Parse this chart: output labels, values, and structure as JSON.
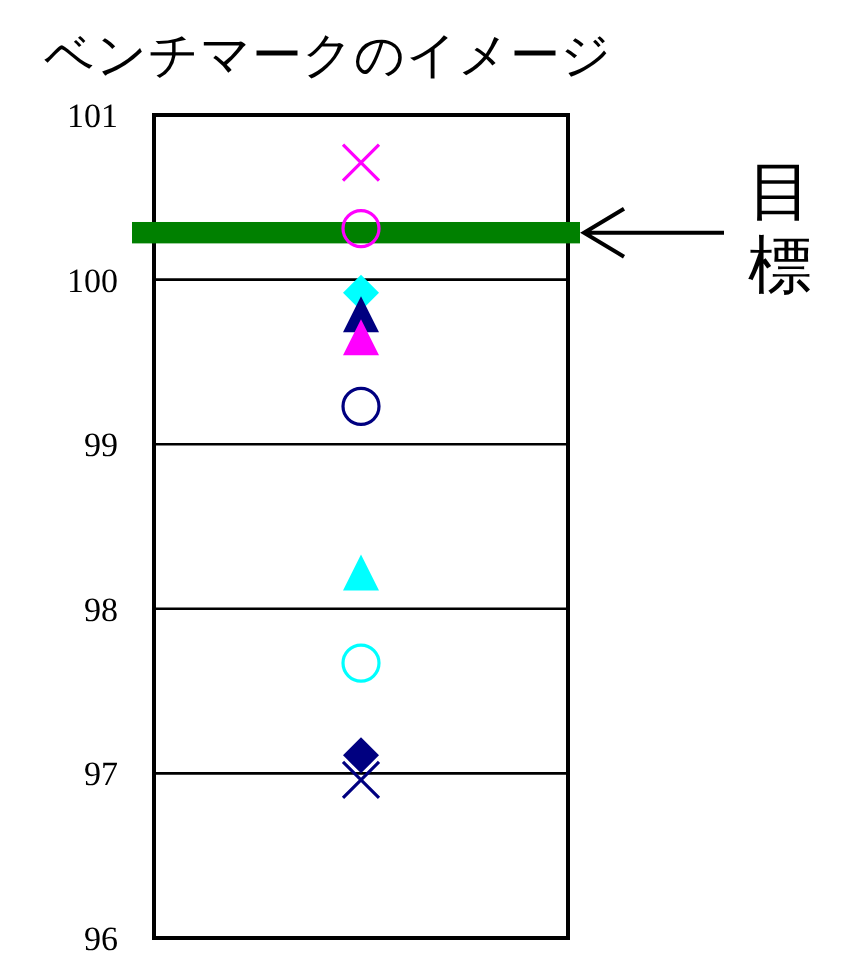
{
  "chart_data": {
    "type": "scatter",
    "title": "ベンチマークのイメージ",
    "categories": [
      null
    ],
    "series": [
      {
        "color": "#ff00ff",
        "marker": "cross",
        "values": [
          100.71
        ]
      },
      {
        "color": "#ff00ff",
        "marker": "circle",
        "values": [
          100.31
        ]
      },
      {
        "color": "#00ffff",
        "marker": "diamond",
        "values": [
          99.92
        ]
      },
      {
        "color": "#000080",
        "marker": "triangle",
        "values": [
          99.79
        ]
      },
      {
        "color": "#ff00ff",
        "marker": "triangle",
        "values": [
          99.65
        ]
      },
      {
        "color": "#000080",
        "marker": "circle",
        "values": [
          99.23
        ]
      },
      {
        "color": "#00ffff",
        "marker": "triangle",
        "values": [
          98.22
        ]
      },
      {
        "color": "#00ffff",
        "marker": "circle",
        "values": [
          97.67
        ]
      },
      {
        "color": "#000080",
        "marker": "diamond",
        "values": [
          97.11
        ]
      },
      {
        "color": "#000080",
        "marker": "cross",
        "values": [
          96.96
        ]
      }
    ],
    "ylim": [
      96,
      101
    ],
    "yticks": [
      96,
      97,
      98,
      99,
      100,
      101
    ],
    "grid": "y",
    "bands": [
      {
        "axis": "y",
        "from": 100.22,
        "to": 100.35,
        "label": "目標",
        "color": "#008000"
      }
    ]
  }
}
